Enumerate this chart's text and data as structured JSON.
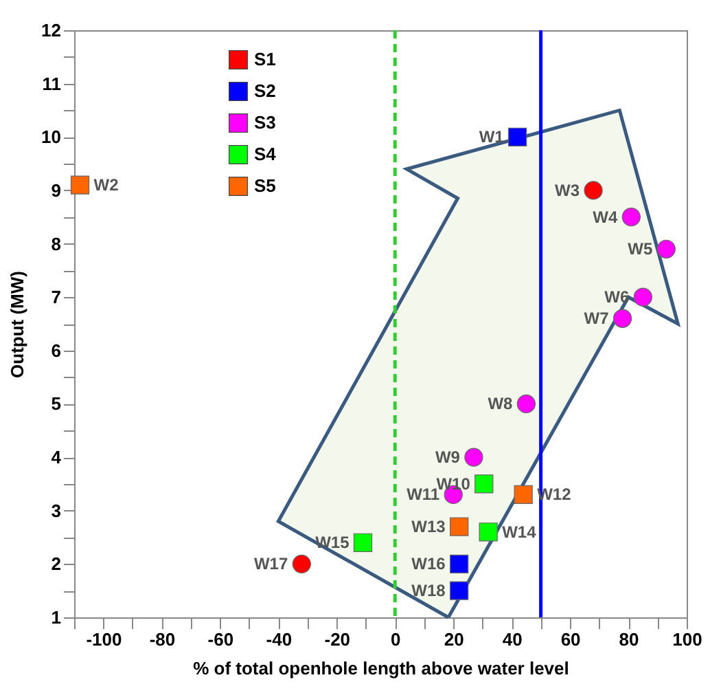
{
  "chart_data": {
    "type": "scatter",
    "xlabel": "% of total openhole length above water level",
    "ylabel": "Output (MW)",
    "series": [
      {
        "name": "S1",
        "color": "#ff0000",
        "marker": "circle",
        "x": [
          68,
          -32
        ],
        "values": [
          9,
          2.0
        ]
      },
      {
        "name": "S2",
        "color": "#0000ff",
        "marker": "square",
        "x": [
          42,
          22,
          22
        ],
        "values": [
          10,
          2.0,
          1.5
        ]
      },
      {
        "name": "S3",
        "color": "#ff00ff",
        "marker": "circle",
        "x": [
          81,
          93,
          85,
          78,
          45,
          27,
          20
        ],
        "values": [
          8.5,
          7.9,
          7.0,
          6.6,
          5.0,
          4.0,
          3.3
        ]
      },
      {
        "name": "S4",
        "color": "#00ff00",
        "marker": "square",
        "x": [
          30.5,
          32,
          -11
        ],
        "values": [
          3.5,
          2.6,
          2.4
        ]
      },
      {
        "name": "S5",
        "color": "#ff6600",
        "marker": "square",
        "x": [
          -108,
          44,
          22
        ],
        "values": [
          9.1,
          3.3,
          2.7
        ]
      }
    ],
    "annotations": [
      {
        "text": "W1",
        "x": 42,
        "y": 10
      },
      {
        "text": "W2",
        "x": -108,
        "y": 9.1
      },
      {
        "text": "W3",
        "x": 68,
        "y": 9
      },
      {
        "text": "W4",
        "x": 81,
        "y": 8.5
      },
      {
        "text": "W5",
        "x": 93,
        "y": 7.9
      },
      {
        "text": "W6",
        "x": 85,
        "y": 7.0
      },
      {
        "text": "W7",
        "x": 78,
        "y": 6.6
      },
      {
        "text": "W8",
        "x": 45,
        "y": 5.0
      },
      {
        "text": "W9",
        "x": 27,
        "y": 4.0
      },
      {
        "text": "W10",
        "x": 30.5,
        "y": 3.5
      },
      {
        "text": "W11",
        "x": 20,
        "y": 3.3
      },
      {
        "text": "W12",
        "x": 44,
        "y": 3.3
      },
      {
        "text": "W13",
        "x": 22,
        "y": 2.7
      },
      {
        "text": "W14",
        "x": 32,
        "y": 2.6
      },
      {
        "text": "W15",
        "x": -11,
        "y": 2.4
      },
      {
        "text": "W16",
        "x": 22,
        "y": 2.0
      },
      {
        "text": "W17",
        "x": -32,
        "y": 2.0
      },
      {
        "text": "W18",
        "x": 22,
        "y": 1.5
      }
    ],
    "ref_lines": [
      {
        "axis": "x",
        "value": 0,
        "color": "#33cc33",
        "line_style": "dashed"
      },
      {
        "axis": "x",
        "value": 50,
        "color": "#0000ff",
        "line_style": "solid"
      }
    ],
    "xlim": [
      -110,
      100
    ],
    "xticks": [
      {
        "value": -110,
        "label": null
      },
      -100,
      {
        "value": -90,
        "label": null
      },
      -80,
      {
        "value": -70,
        "label": null
      },
      -60,
      {
        "value": -50,
        "label": null
      },
      -40,
      {
        "value": -30,
        "label": null
      },
      -20,
      {
        "value": -10,
        "label": null
      },
      0,
      {
        "value": 10,
        "label": null
      },
      20,
      {
        "value": 30,
        "label": null
      },
      40,
      {
        "value": 50,
        "label": null
      },
      60,
      {
        "value": 70,
        "label": null
      },
      80,
      {
        "value": 90,
        "label": null
      },
      100
    ],
    "ylim": [
      1,
      12
    ],
    "yticks": [
      1,
      {
        "value": 1.5,
        "label": null
      },
      2,
      {
        "value": 2.5,
        "label": null
      },
      3,
      {
        "value": 3.5,
        "label": null
      },
      4,
      {
        "value": 4.5,
        "label": null
      },
      5,
      {
        "value": 5.5,
        "label": null
      },
      6,
      {
        "value": 6.5,
        "label": null
      },
      7,
      {
        "value": 7.5,
        "label": null
      },
      8,
      {
        "value": 8.5,
        "label": null
      },
      9,
      {
        "value": 9.5,
        "label": null
      },
      10,
      {
        "value": 10.5,
        "label": null
      },
      11,
      {
        "value": 11.5,
        "label": null
      },
      12
    ],
    "grid": false,
    "legend": "top left"
  }
}
